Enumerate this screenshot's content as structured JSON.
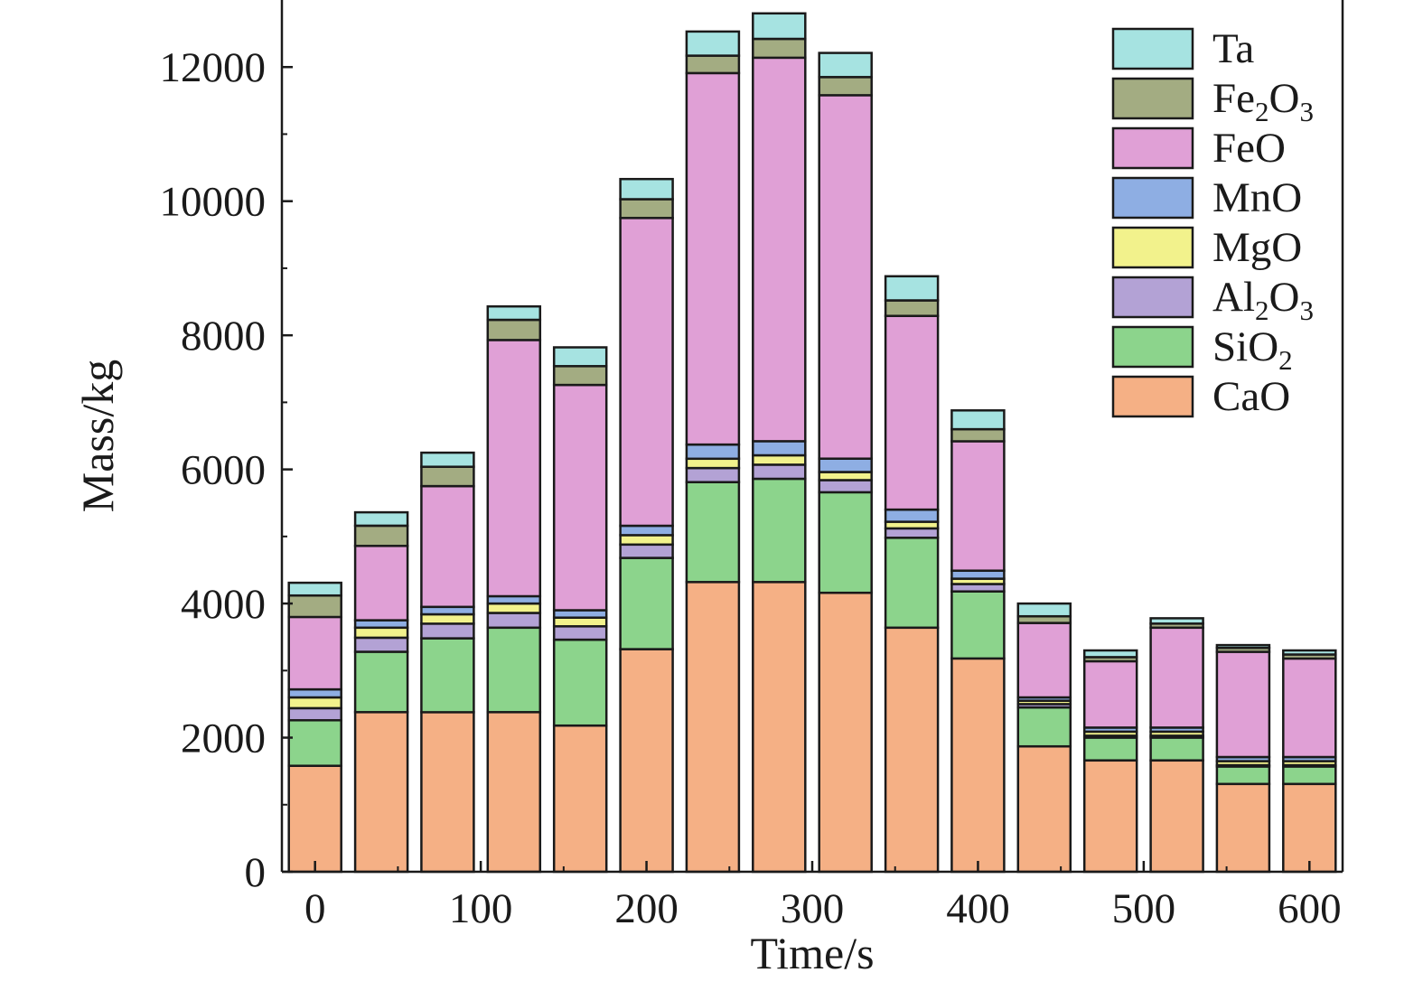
{
  "chart_data": {
    "type": "bar",
    "stacked": true,
    "xlabel": "Time/s",
    "ylabel": "Mass/kg",
    "x": [
      0,
      40,
      80,
      120,
      160,
      200,
      240,
      280,
      320,
      360,
      400,
      440,
      480,
      520,
      560,
      600
    ],
    "xlim": [
      -20,
      620
    ],
    "ylim": [
      0,
      13000
    ],
    "xticks": [
      0,
      100,
      200,
      300,
      400,
      500,
      600
    ],
    "yticks": [
      0,
      2000,
      4000,
      6000,
      8000,
      10000,
      12000
    ],
    "grid": false,
    "legend": "top-right",
    "series": [
      {
        "name": "CaO",
        "color": "#F5B085",
        "values": [
          1580,
          2380,
          2380,
          2380,
          2180,
          3320,
          4320,
          4320,
          4160,
          3640,
          3180,
          1870,
          1660,
          1660,
          1310,
          1310
        ]
      },
      {
        "name": "SiO2",
        "color": "#8CD48C",
        "values": [
          680,
          900,
          1100,
          1260,
          1280,
          1360,
          1490,
          1540,
          1500,
          1340,
          1000,
          580,
          340,
          340,
          260,
          260
        ]
      },
      {
        "name": "Al2O3",
        "color": "#B3A2D5",
        "values": [
          180,
          210,
          220,
          220,
          200,
          200,
          210,
          210,
          180,
          140,
          110,
          50,
          30,
          30,
          20,
          20
        ]
      },
      {
        "name": "MgO",
        "color": "#F2F28C",
        "values": [
          160,
          150,
          140,
          140,
          130,
          140,
          140,
          140,
          120,
          100,
          80,
          50,
          60,
          60,
          60,
          60
        ]
      },
      {
        "name": "MnO",
        "color": "#8EAEE3",
        "values": [
          120,
          110,
          110,
          110,
          110,
          140,
          210,
          210,
          200,
          180,
          120,
          50,
          60,
          60,
          60,
          60
        ]
      },
      {
        "name": "FeO",
        "color": "#E0A0D6",
        "values": [
          1080,
          1110,
          1800,
          3820,
          3360,
          4590,
          5540,
          5720,
          5420,
          2890,
          1930,
          1110,
          990,
          1490,
          1570,
          1470
        ]
      },
      {
        "name": "Fe2O3",
        "color": "#A3AC82",
        "values": [
          320,
          300,
          290,
          300,
          280,
          280,
          260,
          280,
          270,
          230,
          180,
          100,
          60,
          60,
          60,
          60
        ]
      },
      {
        "name": "Ta",
        "color": "#A6E3E1",
        "values": [
          190,
          200,
          210,
          200,
          280,
          300,
          360,
          380,
          360,
          360,
          280,
          190,
          100,
          80,
          40,
          60
        ]
      }
    ]
  },
  "legend_entries": [
    {
      "base": "Ta",
      "sub": ""
    },
    {
      "base": "Fe",
      "sub": "2",
      "base2": "O",
      "sub2": "3"
    },
    {
      "base": "FeO",
      "sub": ""
    },
    {
      "base": "MnO",
      "sub": ""
    },
    {
      "base": "MgO",
      "sub": ""
    },
    {
      "base": "Al",
      "sub": "2",
      "base2": "O",
      "sub2": "3"
    },
    {
      "base": "SiO",
      "sub": "2"
    },
    {
      "base": "CaO",
      "sub": ""
    }
  ]
}
